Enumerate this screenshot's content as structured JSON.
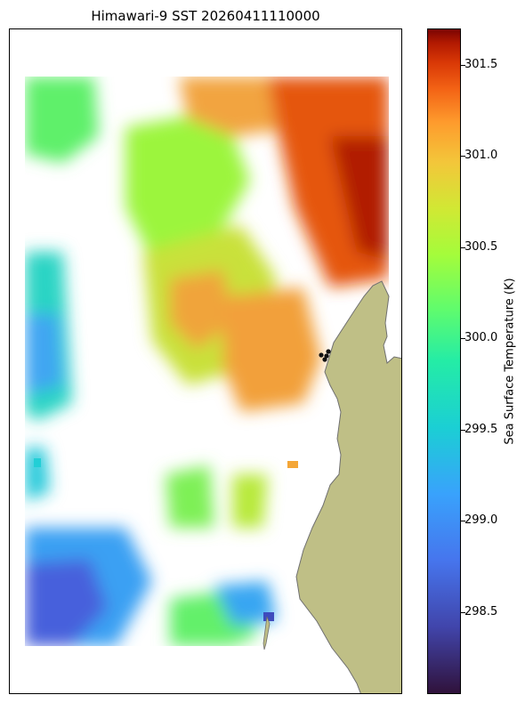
{
  "title": "Himawari-9 SST 20260411110000",
  "colorbar": {
    "label": "Sea Surface Temperature (K)",
    "ticks": [
      "301.5",
      "301.0",
      "300.5",
      "300.0",
      "299.5",
      "299.0",
      "298.5"
    ],
    "tick_values": [
      301.5,
      301.0,
      300.5,
      300.0,
      299.5,
      299.0,
      298.5
    ],
    "range": [
      298.05,
      301.7
    ],
    "colormap": "turbo"
  },
  "map": {
    "land_color": "#bfbf86",
    "marker_color": "#111111",
    "marker_count": 4
  }
}
